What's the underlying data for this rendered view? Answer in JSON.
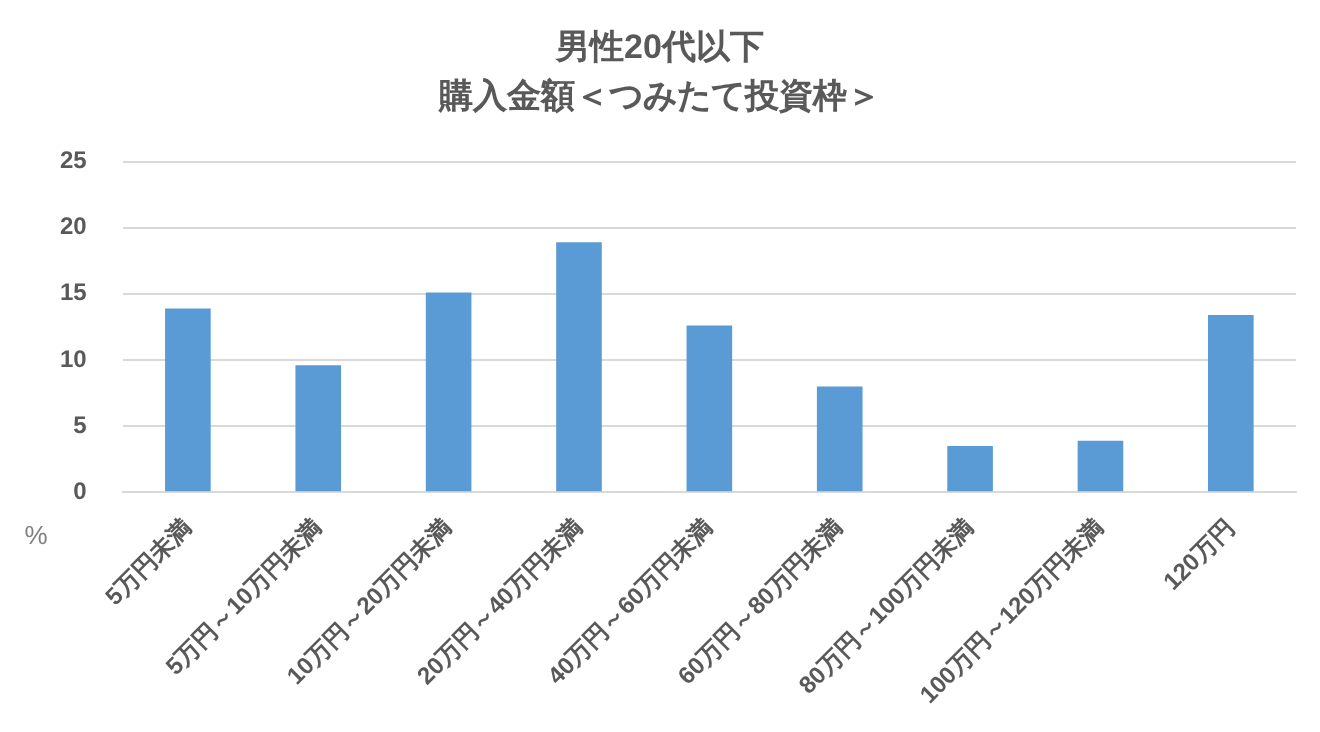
{
  "chart_data": {
    "type": "bar",
    "title": "男性20代以下",
    "subtitle": "購入金額＜つみたて投資枠＞",
    "ylabel": "%",
    "categories": [
      "5万円未満",
      "5万円～10万円未満",
      "10万円～20万円未満",
      "20万円～40万円未満",
      "40万円～60万円未満",
      "60万円～80万円未満",
      "80万円～100万円未満",
      "100万円～120万円未満",
      "120万円"
    ],
    "values": [
      13.9,
      9.6,
      15.1,
      18.9,
      12.6,
      8.0,
      3.5,
      3.9,
      13.4
    ],
    "color": "#5b9bd5",
    "ylim": [
      0,
      25
    ],
    "yticks": [
      0,
      5,
      10,
      15,
      20,
      25
    ],
    "grid": "y",
    "legend": false
  }
}
